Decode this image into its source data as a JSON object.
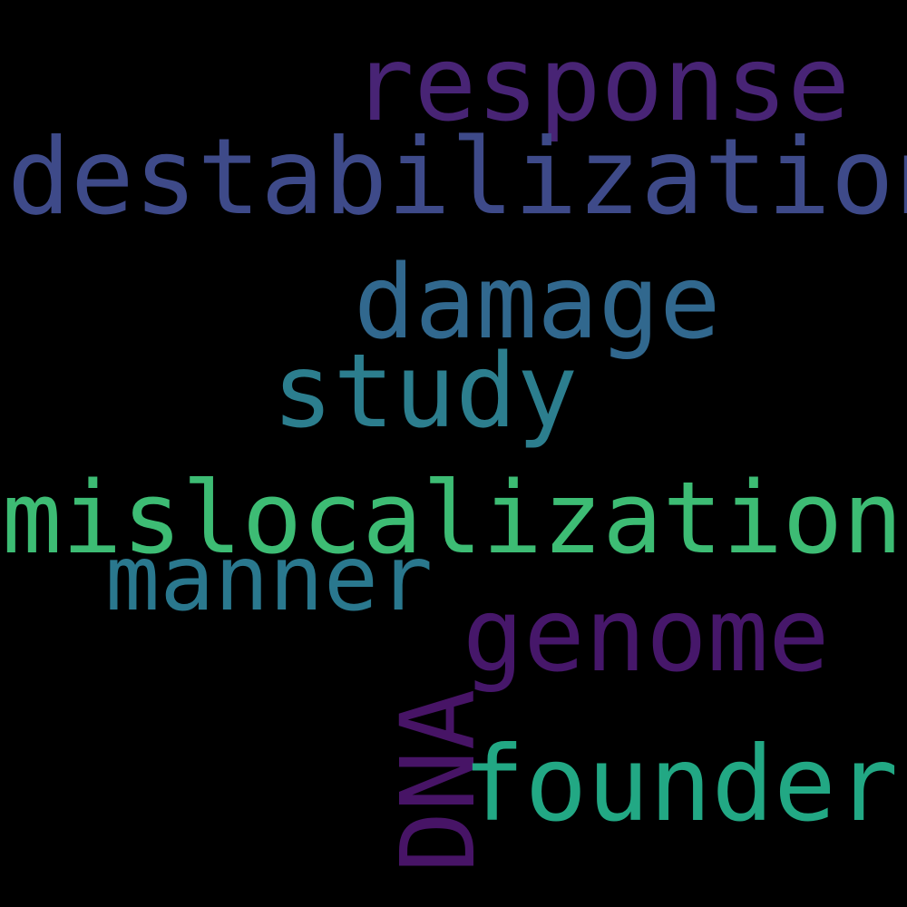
{
  "words": {
    "response": {
      "text": "response",
      "color": "#482475"
    },
    "destabilization": {
      "text": "destabilization",
      "color": "#3e4a89"
    },
    "damage": {
      "text": "damage",
      "color": "#31688e"
    },
    "study": {
      "text": "study",
      "color": "#2c7e8e"
    },
    "mislocalization": {
      "text": "mislocalization",
      "color": "#3dbc74"
    },
    "manner": {
      "text": "manner",
      "color": "#2a788e"
    },
    "genome": {
      "text": "genome",
      "color": "#46176a"
    },
    "dna": {
      "text": "DNA",
      "color": "#471466"
    },
    "founder": {
      "text": "founder",
      "color": "#22a884"
    }
  }
}
